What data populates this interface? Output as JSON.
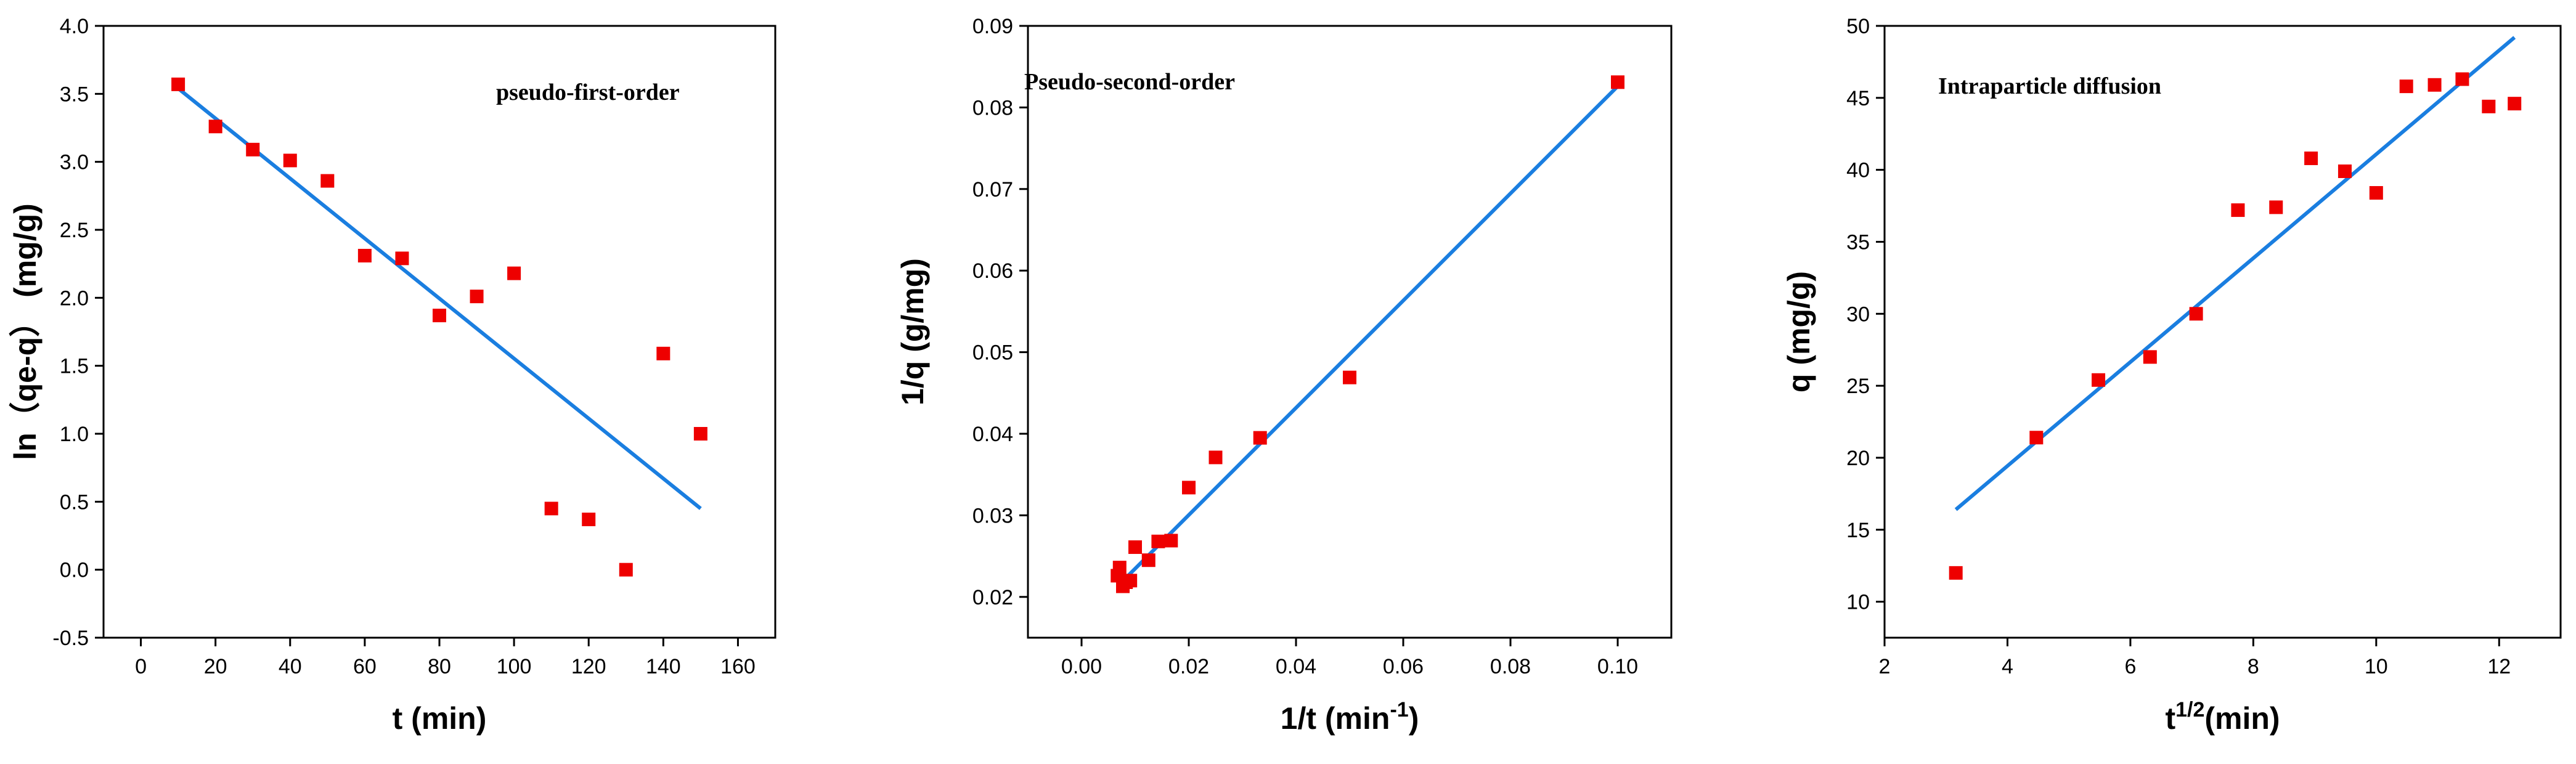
{
  "colors": {
    "points": "#ee0000",
    "fit_line": "#1a7ee0",
    "axes": "#000000"
  },
  "chart_data": [
    {
      "type": "scatter",
      "annotation": "pseudo-first-order",
      "xlabel": "t (min)",
      "ylabel": "ln（qe-q） (mg/g)",
      "xlim": [
        -10,
        170
      ],
      "ylim": [
        -0.5,
        4.0
      ],
      "xticks": [
        0,
        20,
        40,
        60,
        80,
        100,
        120,
        140,
        160
      ],
      "yticks": [
        -0.5,
        0.0,
        0.5,
        1.0,
        1.5,
        2.0,
        2.5,
        3.0,
        3.5,
        4.0
      ],
      "ytick_labels": [
        "-0.5",
        "0.0",
        "0.5",
        "1.0",
        "1.5",
        "2.0",
        "2.5",
        "3.0",
        "3.5",
        "4.0"
      ],
      "xtick_labels": [
        "0",
        "20",
        "40",
        "60",
        "80",
        "100",
        "120",
        "140",
        "160"
      ],
      "points": [
        [
          10,
          3.57
        ],
        [
          20,
          3.26
        ],
        [
          30,
          3.09
        ],
        [
          40,
          3.01
        ],
        [
          50,
          2.86
        ],
        [
          60,
          2.31
        ],
        [
          70,
          2.29
        ],
        [
          80,
          1.87
        ],
        [
          90,
          2.01
        ],
        [
          100,
          2.18
        ],
        [
          110,
          0.45
        ],
        [
          120,
          0.37
        ],
        [
          130,
          0.0
        ],
        [
          140,
          1.59
        ],
        [
          150,
          1.0
        ]
      ],
      "fit": {
        "x": [
          10,
          150
        ],
        "y": [
          3.54,
          0.45
        ]
      }
    },
    {
      "type": "scatter",
      "annotation": "Pseudo-second-order",
      "xlabel": "1/t (min-1)",
      "xlabel_main": "1/t (min",
      "xlabel_sup": "-1",
      "xlabel_close": ")",
      "ylabel": "1/q (g/mg)",
      "xlim": [
        -0.01,
        0.11
      ],
      "ylim": [
        0.015,
        0.09
      ],
      "xticks": [
        0.0,
        0.02,
        0.04,
        0.06,
        0.08,
        0.1
      ],
      "xtick_labels": [
        "0.00",
        "0.02",
        "0.04",
        "0.06",
        "0.08",
        "0.10"
      ],
      "yticks": [
        0.02,
        0.03,
        0.04,
        0.05,
        0.06,
        0.07,
        0.08,
        0.09
      ],
      "ytick_labels": [
        "0.02",
        "0.03",
        "0.04",
        "0.05",
        "0.06",
        "0.07",
        "0.08",
        "0.09"
      ],
      "points": [
        [
          0.0067,
          0.0226
        ],
        [
          0.0071,
          0.0236
        ],
        [
          0.0077,
          0.0213
        ],
        [
          0.0083,
          0.0218
        ],
        [
          0.0091,
          0.022
        ],
        [
          0.01,
          0.0261
        ],
        [
          0.0125,
          0.0245
        ],
        [
          0.0143,
          0.0268
        ],
        [
          0.0167,
          0.0269
        ],
        [
          0.02,
          0.0334
        ],
        [
          0.025,
          0.0371
        ],
        [
          0.0333,
          0.0395
        ],
        [
          0.05,
          0.0469
        ],
        [
          0.1,
          0.0831
        ]
      ],
      "fit": {
        "x": [
          0.0067,
          0.1
        ],
        "y": [
          0.0213,
          0.0826
        ]
      }
    },
    {
      "type": "scatter",
      "annotation": "Intraparticle diffusion",
      "xlabel": "t1/2(min)",
      "xlabel_main": "t",
      "xlabel_sup": "1/2",
      "xlabel_close": "(min)",
      "ylabel": "q (mg/g)",
      "xlim": [
        2,
        13
      ],
      "ylim": [
        7.5,
        50
      ],
      "xticks": [
        2,
        4,
        6,
        8,
        10,
        12
      ],
      "xtick_labels": [
        "2",
        "4",
        "6",
        "8",
        "10",
        "12"
      ],
      "yticks": [
        10,
        15,
        20,
        25,
        30,
        35,
        40,
        45,
        50
      ],
      "ytick_labels": [
        "10",
        "15",
        "20",
        "25",
        "30",
        "35",
        "40",
        "45",
        "50"
      ],
      "points": [
        [
          3.16,
          12.0
        ],
        [
          4.47,
          21.4
        ],
        [
          5.48,
          25.4
        ],
        [
          6.32,
          27.0
        ],
        [
          7.07,
          30.0
        ],
        [
          7.75,
          37.2
        ],
        [
          8.37,
          37.4
        ],
        [
          8.94,
          40.8
        ],
        [
          9.49,
          39.9
        ],
        [
          10.0,
          38.4
        ],
        [
          10.49,
          45.8
        ],
        [
          10.95,
          45.9
        ],
        [
          11.4,
          46.3
        ],
        [
          11.83,
          44.4
        ],
        [
          12.25,
          44.6
        ]
      ],
      "fit": {
        "x": [
          3.16,
          12.25
        ],
        "y": [
          16.4,
          49.2
        ]
      }
    }
  ]
}
